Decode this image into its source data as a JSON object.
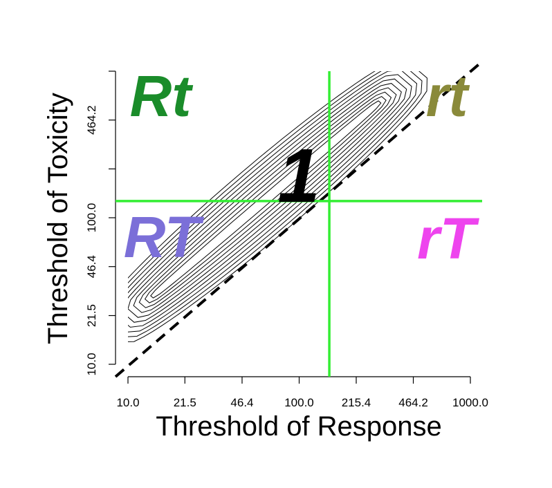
{
  "chart_data": {
    "type": "contour",
    "xlabel": "Threshold of Response",
    "ylabel": "Threshold of Toxicity",
    "x_scale": "log10",
    "y_scale": "log10",
    "x_ticks": [
      10,
      21.5,
      46.4,
      100,
      215.4,
      464.2,
      1000
    ],
    "x_tick_labels": [
      "10.0",
      "21.5",
      "46.4",
      "100.0",
      "215.4",
      "464.2",
      "1000.0"
    ],
    "y_ticks": [
      10,
      21.5,
      46.4,
      100,
      215.4,
      464.2,
      1000
    ],
    "y_tick_labels": [
      "10.0",
      "21.5",
      "46.4",
      "100.0",
      "",
      "464.2",
      ""
    ],
    "xlim": [
      10,
      1000
    ],
    "ylim": [
      10,
      1000
    ],
    "grid": false,
    "quadrant_labels": [
      {
        "text": "Rt",
        "position": "top-left",
        "color": "#1a8c2a"
      },
      {
        "text": "rt",
        "position": "top-right",
        "color": "#8a8a3a"
      },
      {
        "text": "RT",
        "position": "bottom-left",
        "color": "#7b6fd8"
      },
      {
        "text": "rT",
        "position": "bottom-right",
        "color": "#ee44ee"
      }
    ],
    "peak_label": "1",
    "reference_lines": {
      "vertical_x": 150,
      "horizontal_y": 130,
      "color": "#33ee33",
      "diagonal": "y = x, dashed"
    },
    "contour_ridge": {
      "direction": "diagonal, above y = x",
      "levels": 10
    }
  }
}
